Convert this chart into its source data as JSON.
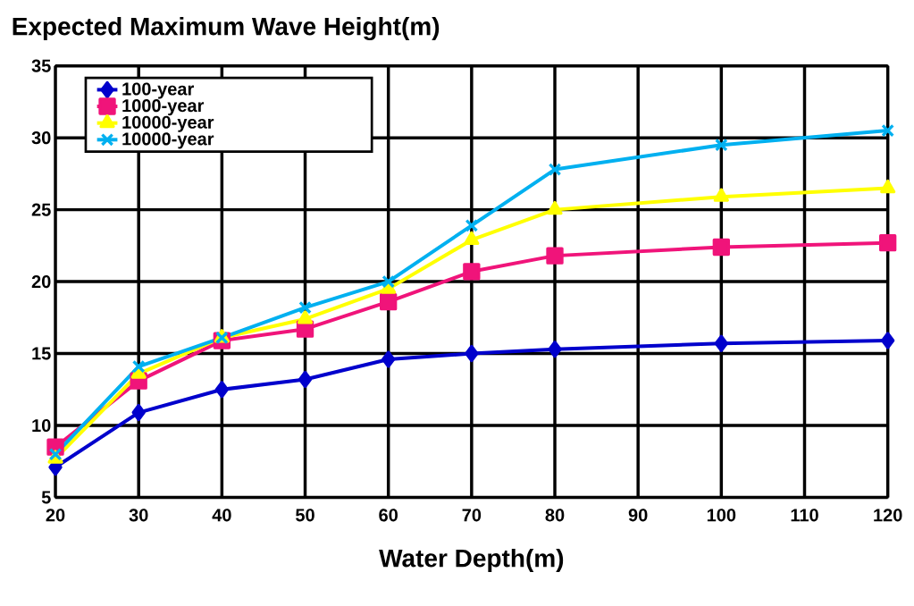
{
  "chart_data": {
    "type": "line",
    "title": "Expected Maximum Wave Height(m)",
    "xlabel": "Water Depth(m)",
    "x": [
      20,
      30,
      40,
      50,
      60,
      70,
      80,
      100,
      120
    ],
    "series": [
      {
        "name": "100-year",
        "color": "#0000cc",
        "marker": "diamond",
        "values": [
          7.1,
          10.9,
          12.5,
          13.2,
          14.6,
          15.0,
          15.3,
          15.7,
          15.9
        ]
      },
      {
        "name": "1000-year",
        "color": "#f0147a",
        "marker": "square",
        "values": [
          8.5,
          13.1,
          15.9,
          16.7,
          18.6,
          20.7,
          21.8,
          22.4,
          22.7
        ]
      },
      {
        "name": "10000-year",
        "color": "#ffff00",
        "marker": "triangle",
        "values": [
          7.7,
          13.6,
          16.1,
          17.4,
          19.5,
          22.9,
          25.0,
          25.9,
          26.5
        ]
      },
      {
        "name": "10000-year",
        "color": "#00b0f0",
        "marker": "cross",
        "values": [
          8.0,
          14.1,
          16.1,
          18.2,
          20.0,
          23.9,
          27.8,
          29.5,
          30.5
        ]
      }
    ],
    "xlim": [
      20,
      120
    ],
    "ylim": [
      5,
      35
    ],
    "xticks": [
      20,
      30,
      40,
      50,
      60,
      70,
      80,
      90,
      100,
      110,
      120
    ],
    "yticks": [
      5,
      10,
      15,
      20,
      25,
      30,
      35
    ],
    "grid": true,
    "legend": "top left",
    "line_style": "solid"
  }
}
